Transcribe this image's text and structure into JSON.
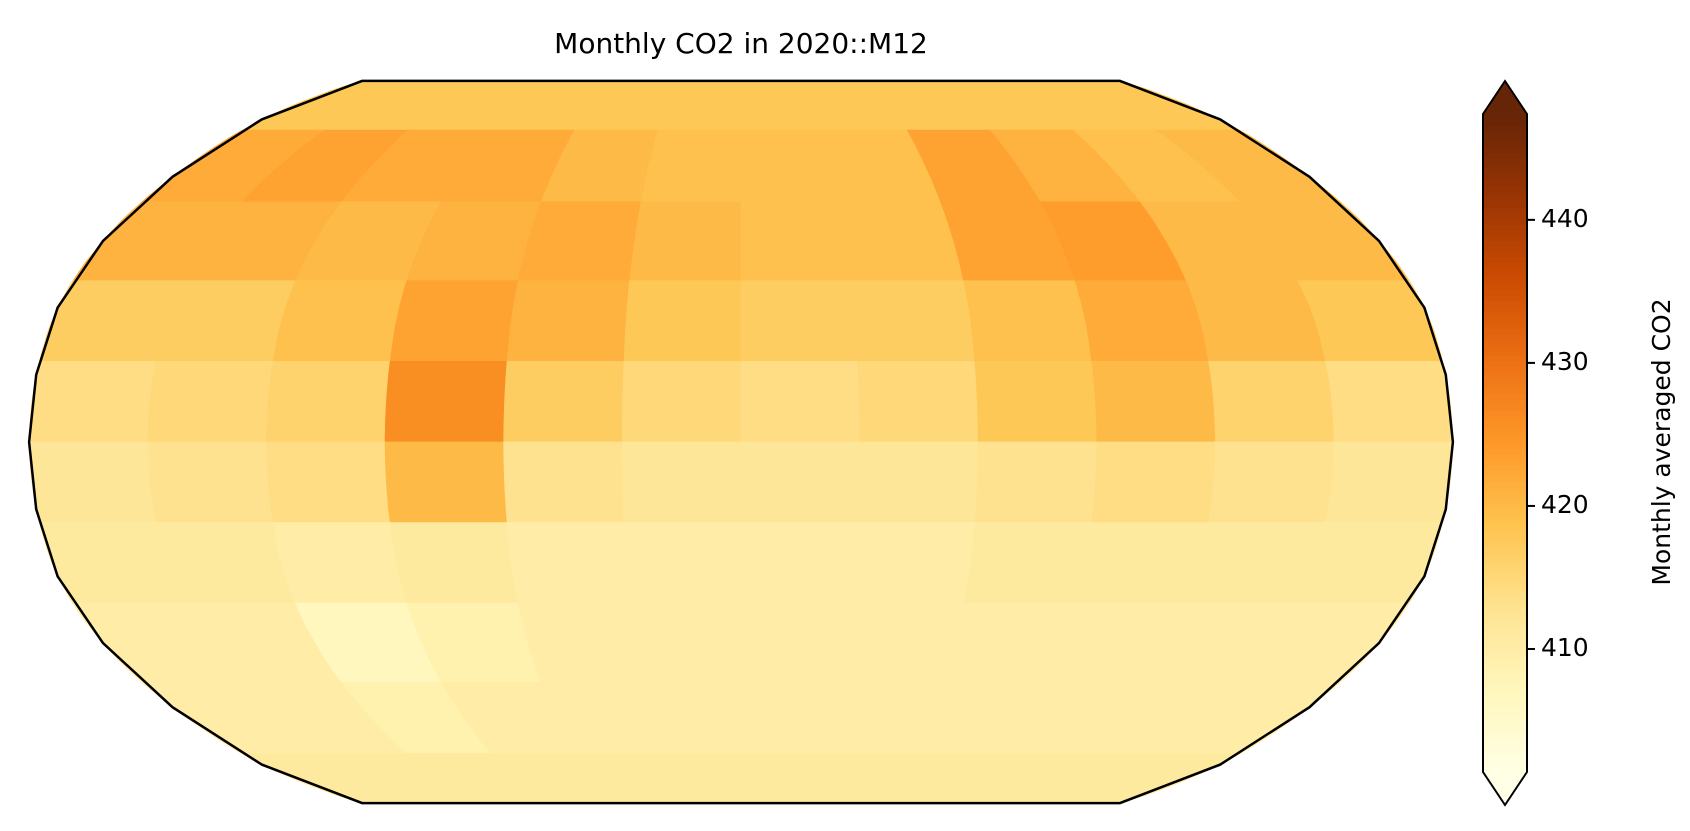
{
  "chart_data": {
    "type": "map",
    "projection": "robinson",
    "central_longitude": 180,
    "title": "Monthly CO2 in 2020::M12",
    "colorbar_label": "Monthly averaged CO2",
    "colormap": "YlOrBr",
    "vlim": [
      401.4,
      447.4
    ],
    "cticks": [
      410,
      420,
      430,
      440
    ],
    "extend": "both",
    "lat": [
      90,
      72,
      54,
      36,
      18,
      0,
      -18,
      -36,
      -54,
      -72,
      -90
    ],
    "lon": [
      0,
      30,
      60,
      90,
      120,
      150,
      180,
      210,
      240,
      270,
      300,
      330,
      360
    ],
    "values": [
      [
        418,
        418,
        418,
        418,
        418,
        418,
        418,
        418,
        418,
        418,
        418,
        418
      ],
      [
        422,
        423,
        422,
        422,
        420,
        419,
        419,
        419,
        423,
        421,
        419,
        420
      ],
      [
        421,
        421,
        420,
        421,
        422,
        420,
        419,
        419,
        423,
        424,
        420,
        420
      ],
      [
        417,
        417,
        419,
        423,
        421,
        418,
        417,
        417,
        419,
        422,
        420,
        418
      ],
      [
        414,
        415,
        416,
        426,
        417,
        415,
        414,
        415,
        418,
        420,
        416,
        414
      ],
      [
        412,
        413,
        414,
        420,
        413,
        412,
        412,
        412,
        413,
        414,
        413,
        412
      ],
      [
        411,
        411,
        410,
        411,
        410,
        410,
        410,
        410,
        411,
        411,
        411,
        411
      ],
      [
        410,
        410,
        407,
        409,
        410,
        410,
        410,
        410,
        410,
        410,
        410,
        410
      ],
      [
        410,
        410,
        409,
        410,
        410,
        410,
        410,
        410,
        410,
        410,
        410,
        410
      ],
      [
        411,
        411,
        411,
        411,
        411,
        411,
        411,
        411,
        411,
        411,
        411,
        411
      ]
    ]
  }
}
